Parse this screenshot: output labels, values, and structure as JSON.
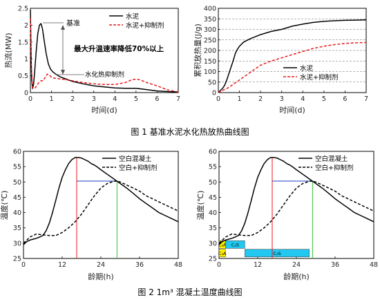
{
  "figure1": {
    "caption": "图 1   基准水泥水化热放热曲线图",
    "left": {
      "type": "line",
      "ylabel": "热流(MW)",
      "xlabel": "时间(d)",
      "xlim": [
        0,
        7
      ],
      "ylim": [
        0,
        2.5
      ],
      "xticks": [
        "0",
        "1",
        "2",
        "3",
        "4",
        "5",
        "6",
        "7"
      ],
      "yticks": [
        "0",
        "0.5",
        "1",
        "1.5",
        "2",
        "2.5"
      ],
      "legend": [
        "水泥",
        "水泥+抑制剂"
      ],
      "legend_position": "top-right",
      "annotations": [
        "基准",
        "最大升温速率降低70%以上",
        "水化热抑制剂"
      ],
      "colors": {
        "cement": "#000000",
        "inhibitor": "#e8191c",
        "annot": "#555555"
      },
      "series": [
        {
          "name": "水泥",
          "style": "solid",
          "color": "#000000",
          "x": [
            0,
            0.03,
            0.06,
            0.1,
            0.15,
            0.2,
            0.27,
            0.35,
            0.43,
            0.5,
            0.57,
            0.65,
            0.75,
            0.85,
            0.95,
            1.05,
            1.2,
            1.4,
            1.7,
            2.0,
            2.5,
            3.0,
            3.5,
            4.0,
            4.5,
            5.0,
            5.5,
            6.0,
            6.5,
            7.0
          ],
          "y": [
            2.45,
            1.2,
            0.4,
            0.12,
            0.25,
            0.6,
            1.2,
            1.75,
            2.0,
            2.05,
            1.9,
            1.55,
            1.15,
            0.85,
            0.7,
            0.62,
            0.55,
            0.47,
            0.4,
            0.33,
            0.26,
            0.2,
            0.17,
            0.14,
            0.13,
            0.13,
            0.09,
            0.05,
            0.03,
            0.02
          ]
        },
        {
          "name": "水泥+抑制剂",
          "style": "dashed",
          "color": "#e8191c",
          "x": [
            0,
            0.05,
            0.1,
            0.2,
            0.3,
            0.4,
            0.5,
            0.6,
            0.7,
            0.8,
            0.9,
            1.0,
            1.2,
            1.5,
            2.0,
            2.5,
            3.0,
            3.5,
            4.0,
            4.5,
            4.8,
            5.0,
            5.2,
            5.5,
            6.0,
            6.5,
            7.0
          ],
          "y": [
            2.2,
            0.7,
            0.15,
            0.12,
            0.2,
            0.3,
            0.35,
            0.35,
            0.45,
            0.55,
            0.52,
            0.45,
            0.42,
            0.4,
            0.35,
            0.3,
            0.26,
            0.24,
            0.24,
            0.3,
            0.38,
            0.4,
            0.38,
            0.3,
            0.2,
            0.08,
            0.02
          ]
        }
      ]
    },
    "right": {
      "type": "line",
      "ylabel": "累积放热量(J/g)",
      "xlabel": "时间(d)",
      "xlim": [
        0,
        7
      ],
      "ylim": [
        0,
        400
      ],
      "xticks": [
        "0",
        "1",
        "2",
        "3",
        "4",
        "5",
        "6",
        "7"
      ],
      "yticks": [
        "0",
        "50",
        "100",
        "150",
        "200",
        "250",
        "300",
        "350",
        "400"
      ],
      "legend": [
        "水泥",
        "水泥+抑制剂"
      ],
      "legend_position": "bottom-right",
      "grid": "dashed-horizontal",
      "series": [
        {
          "name": "水泥",
          "style": "solid",
          "color": "#000000",
          "x": [
            0,
            0.1,
            0.2,
            0.3,
            0.4,
            0.5,
            0.6,
            0.7,
            0.8,
            0.9,
            1.0,
            1.2,
            1.5,
            2.0,
            2.5,
            3.0,
            3.5,
            4.0,
            4.5,
            5.0,
            5.5,
            6.0,
            6.5,
            7.0
          ],
          "y": [
            0,
            10,
            20,
            35,
            60,
            90,
            120,
            150,
            185,
            205,
            220,
            240,
            255,
            275,
            290,
            300,
            315,
            325,
            333,
            338,
            341,
            343,
            344,
            345
          ]
        },
        {
          "name": "水泥+抑制剂",
          "style": "dashed",
          "color": "#e8191c",
          "x": [
            0,
            0.2,
            0.5,
            1.0,
            1.5,
            2.0,
            2.5,
            3.0,
            3.5,
            4.0,
            4.5,
            5.0,
            5.5,
            6.0,
            6.5,
            7.0
          ],
          "y": [
            0,
            10,
            25,
            60,
            95,
            130,
            150,
            165,
            180,
            195,
            210,
            220,
            228,
            233,
            236,
            238
          ]
        }
      ]
    }
  },
  "figure2": {
    "caption": "图 2   1m³ 混凝土温度曲线图",
    "legend": [
      "空白混凝土",
      "空白+抑制剂"
    ],
    "ylabel": "温度(℃)",
    "xlabel": "龄期(h)",
    "xlim": [
      0,
      48
    ],
    "ylim": [
      25,
      60
    ],
    "xticks": [
      "0",
      "12",
      "24",
      "36",
      "48"
    ],
    "yticks": [
      "25",
      "30",
      "35",
      "40",
      "45",
      "50",
      "55",
      "60"
    ],
    "colors": {
      "red_marker": "#e8191c",
      "green_marker": "#2fc12f",
      "blue_marker": "#1f3fbf",
      "yellow": "#ffee00",
      "cyan": "#22c8f0"
    },
    "series": [
      {
        "name": "空白混凝土",
        "style": "solid",
        "x": [
          0,
          1,
          2,
          3,
          4,
          5,
          6,
          7,
          8,
          9,
          10,
          11,
          12,
          13,
          14,
          15,
          16,
          17,
          18,
          19,
          20,
          21,
          22,
          23,
          24,
          26,
          28,
          30,
          32,
          34,
          36,
          38,
          40,
          42,
          44,
          46,
          48
        ],
        "y": [
          29.5,
          30.5,
          31,
          31.3,
          31.6,
          32,
          32.5,
          34,
          36.5,
          40,
          44,
          48,
          51.5,
          54,
          56,
          57.3,
          58,
          58,
          57.8,
          57.3,
          56.8,
          56,
          55.5,
          54.8,
          54,
          52.5,
          51,
          49.5,
          48,
          46.3,
          44.5,
          43,
          41.5,
          40,
          39,
          38,
          37
        ]
      },
      {
        "name": "空白+抑制剂",
        "style": "dashed",
        "x": [
          0,
          2,
          4,
          6,
          8,
          10,
          12,
          14,
          16,
          18,
          20,
          22,
          24,
          26,
          28,
          29,
          30,
          32,
          34,
          36,
          38,
          40,
          42,
          44,
          46,
          48
        ],
        "y": [
          30,
          32,
          33,
          32.7,
          32.5,
          32.5,
          33.5,
          35,
          37,
          39.5,
          42.5,
          45.5,
          48,
          49.5,
          50.2,
          50.3,
          50,
          49,
          48,
          47,
          45.5,
          44.5,
          43.5,
          42.5,
          41.5,
          40.5
        ]
      }
    ],
    "markers": {
      "peak1": {
        "x": 16.5,
        "y": 58
      },
      "peak2": {
        "x": 29,
        "y": 50.3
      },
      "hline_y": 50.3
    },
    "phases": [
      {
        "label": "C₃A",
        "x0": 0,
        "x1": 2,
        "y0": 28.3,
        "y1": 30.8,
        "color": "#ffee00"
      },
      {
        "label": "C₃A",
        "x0": 0,
        "x1": 2,
        "y0": 25.5,
        "y1": 28,
        "color": "#ffee00"
      },
      {
        "label": "C₃S",
        "x0": 2,
        "x1": 8,
        "y0": 28.3,
        "y1": 30.8,
        "color": "#22c8f0"
      },
      {
        "label": "C₃S",
        "x0": 8,
        "x1": 28,
        "y0": 25.5,
        "y1": 28,
        "color": "#22c8f0"
      }
    ]
  }
}
